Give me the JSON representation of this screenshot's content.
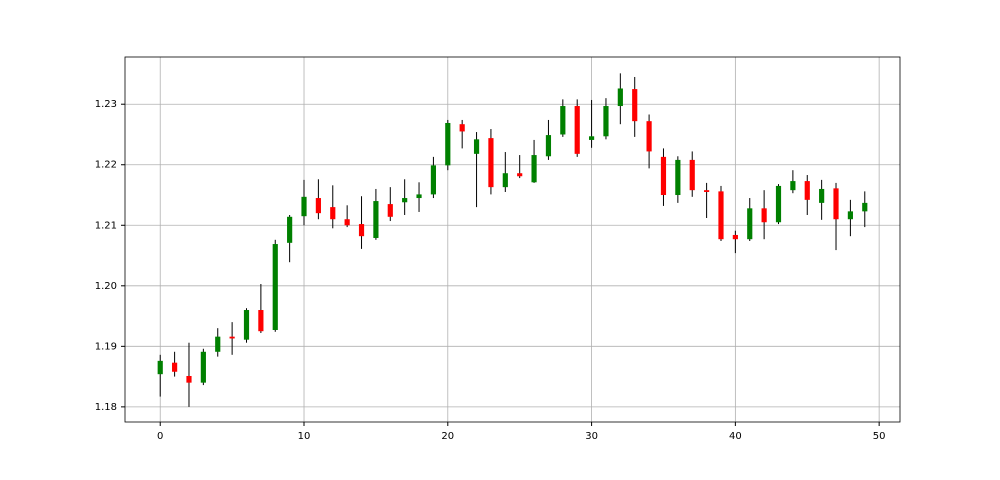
{
  "chart_data": {
    "type": "candlestick",
    "x": [
      0,
      1,
      2,
      3,
      4,
      5,
      6,
      7,
      8,
      9,
      10,
      11,
      12,
      13,
      14,
      15,
      16,
      17,
      18,
      19,
      20,
      21,
      22,
      23,
      24,
      25,
      26,
      27,
      28,
      29,
      30,
      31,
      32,
      33,
      34,
      35,
      36,
      37,
      38,
      39,
      40,
      41,
      42,
      43,
      44,
      45,
      46,
      47,
      48,
      49
    ],
    "open": [
      1.1854,
      1.1873,
      1.1851,
      1.184,
      1.1891,
      1.1916,
      1.1911,
      1.196,
      1.1927,
      1.2071,
      1.2115,
      1.2145,
      1.213,
      1.211,
      1.2102,
      1.2079,
      1.2135,
      1.2138,
      1.2145,
      1.2151,
      1.2199,
      1.2267,
      1.2218,
      1.2244,
      1.2163,
      1.2186,
      1.2171,
      1.2214,
      1.225,
      1.2297,
      1.2241,
      1.2247,
      1.2297,
      1.2325,
      1.2272,
      1.2213,
      1.215,
      1.2208,
      1.2158,
      1.2156,
      1.2084,
      1.2077,
      1.2128,
      1.2105,
      1.2158,
      1.2173,
      1.2137,
      1.2161,
      1.211,
      1.2123
    ],
    "high": [
      1.1886,
      1.1891,
      1.1906,
      1.1896,
      1.193,
      1.194,
      1.1963,
      1.2003,
      1.2076,
      1.2117,
      1.2175,
      1.2176,
      1.2166,
      1.2133,
      1.2148,
      1.216,
      1.2163,
      1.2176,
      1.2171,
      1.2213,
      1.2274,
      1.2274,
      1.2254,
      1.2259,
      1.2221,
      1.2216,
      1.2241,
      1.2274,
      1.2308,
      1.2308,
      1.2307,
      1.231,
      1.2351,
      1.2345,
      1.2283,
      1.2227,
      1.2214,
      1.2222,
      1.217,
      1.2165,
      1.2091,
      1.2145,
      1.2158,
      1.2168,
      1.2191,
      1.2183,
      1.2175,
      1.217,
      1.2142,
      1.2156
    ],
    "low": [
      1.1817,
      1.185,
      1.18,
      1.1836,
      1.1883,
      1.1886,
      1.1906,
      1.1922,
      1.1924,
      1.2039,
      1.21,
      1.211,
      1.2095,
      1.2097,
      1.2061,
      1.2076,
      1.2107,
      1.2117,
      1.2122,
      1.2145,
      1.2191,
      1.2227,
      1.213,
      1.2151,
      1.2155,
      1.2178,
      1.217,
      1.2208,
      1.2246,
      1.2213,
      1.2228,
      1.2242,
      1.2267,
      1.2246,
      1.2194,
      1.2132,
      1.2137,
      1.2147,
      1.2112,
      1.2074,
      1.2054,
      1.2074,
      1.2077,
      1.2102,
      1.2153,
      1.2117,
      1.2109,
      1.2059,
      1.2082,
      1.2097
    ],
    "close": [
      1.1876,
      1.1858,
      1.184,
      1.1891,
      1.1916,
      1.1913,
      1.196,
      1.1925,
      1.2069,
      1.2114,
      1.2147,
      1.212,
      1.211,
      1.21,
      1.2082,
      1.214,
      1.2114,
      1.2145,
      1.2151,
      1.2199,
      1.2269,
      1.2255,
      1.2242,
      1.2163,
      1.2186,
      1.2181,
      1.2216,
      1.2249,
      1.2297,
      1.2218,
      1.2247,
      1.2297,
      1.2326,
      1.2272,
      1.2222,
      1.215,
      1.2208,
      1.2158,
      1.2155,
      1.2077,
      1.2077,
      1.2128,
      1.2105,
      1.2165,
      1.2173,
      1.2142,
      1.216,
      1.211,
      1.2123,
      1.2137
    ],
    "up_color": "#008000",
    "down_color": "#ff0000",
    "wick_color": "#000000",
    "xlim": [
      -2.45,
      51.45
    ],
    "xticks": [
      0,
      10,
      20,
      30,
      40,
      50
    ],
    "ylim": [
      1.1775,
      1.2378
    ],
    "yticks": [
      1.18,
      1.19,
      {
        "value": 1.2,
        "label": "1.20"
      },
      1.21,
      1.22,
      1.23
    ],
    "grid": true
  }
}
